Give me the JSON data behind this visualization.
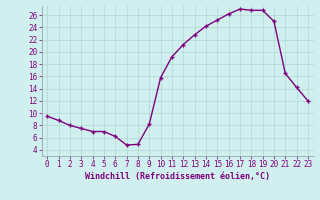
{
  "x": [
    0,
    1,
    2,
    3,
    4,
    5,
    6,
    7,
    8,
    9,
    10,
    11,
    12,
    13,
    14,
    15,
    16,
    17,
    18,
    19,
    20,
    21,
    22,
    23
  ],
  "y": [
    9.5,
    8.8,
    8.0,
    7.5,
    7.0,
    7.0,
    6.2,
    4.8,
    4.9,
    8.2,
    15.8,
    19.2,
    21.2,
    22.8,
    24.2,
    25.2,
    26.2,
    27.0,
    26.8,
    26.8,
    25.0,
    16.5,
    14.2,
    12.0
  ],
  "line_color": "#800080",
  "marker": "+",
  "marker_size": 3,
  "bg_color": "#cff0ee",
  "grid_color": "#b0d8d0",
  "xlabel": "Windchill (Refroidissement éolien,°C)",
  "xlim": [
    -0.5,
    23.5
  ],
  "ylim": [
    3,
    27.5
  ],
  "yticks": [
    4,
    6,
    8,
    10,
    12,
    14,
    16,
    18,
    20,
    22,
    24,
    26
  ],
  "xticks": [
    0,
    1,
    2,
    3,
    4,
    5,
    6,
    7,
    8,
    9,
    10,
    11,
    12,
    13,
    14,
    15,
    16,
    17,
    18,
    19,
    20,
    21,
    22,
    23
  ],
  "xlabel_fontsize": 6,
  "tick_fontsize": 5.5,
  "line_width": 1.0,
  "line_color_hex": "#800080"
}
